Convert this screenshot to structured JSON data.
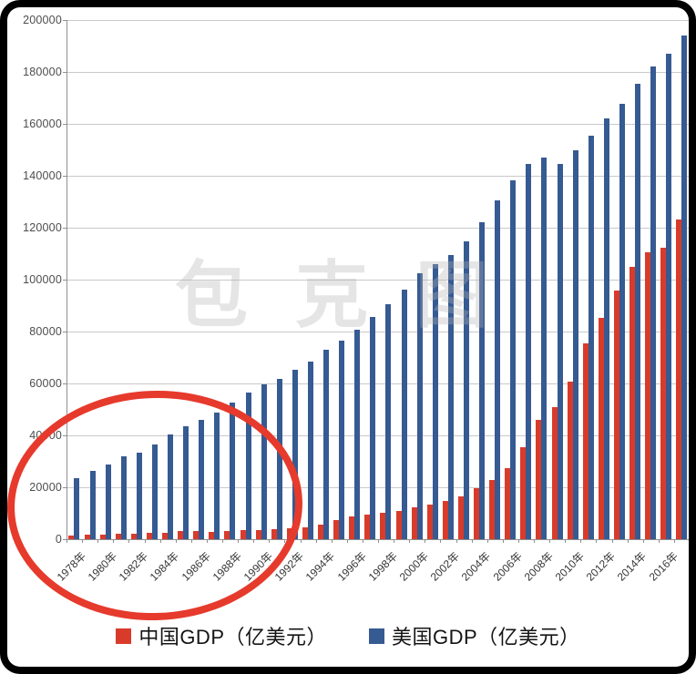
{
  "chart_data": {
    "type": "bar",
    "title": "",
    "xlabel": "",
    "ylabel": "",
    "x": [
      1978,
      1979,
      1980,
      1981,
      1982,
      1983,
      1984,
      1985,
      1986,
      1987,
      1988,
      1989,
      1990,
      1991,
      1992,
      1993,
      1994,
      1995,
      1996,
      1997,
      1998,
      1999,
      2000,
      2001,
      2002,
      2003,
      2004,
      2005,
      2006,
      2007,
      2008,
      2009,
      2010,
      2011,
      2012,
      2013,
      2014,
      2015,
      2016,
      2017
    ],
    "x_tick_labels": [
      "1978年",
      "1980年",
      "1982年",
      "1984年",
      "1986年",
      "1988年",
      "1990年",
      "1992年",
      "1994年",
      "1996年",
      "1998年",
      "2000年",
      "2002年",
      "2004年",
      "2006年",
      "2008年",
      "2010年",
      "2012年",
      "2014年",
      "2016年"
    ],
    "series": [
      {
        "name": "中国GDP（亿美元）",
        "color": "#d93b2b",
        "values": [
          1495,
          1782,
          1911,
          1959,
          2054,
          2306,
          2598,
          3095,
          3005,
          2729,
          3124,
          3478,
          3609,
          3834,
          4269,
          4447,
          5643,
          7345,
          8637,
          9616,
          10292,
          10939,
          12113,
          13393,
          14705,
          16602,
          19553,
          22860,
          27521,
          35504,
          45941,
          51015,
          60871,
          75515,
          85322,
          95704,
          104756,
          110616,
          112333,
          123104
        ]
      },
      {
        "name": "美国GDP（亿美元）",
        "color": "#365a92",
        "values": [
          23570,
          26327,
          28625,
          32109,
          33452,
          36383,
          40403,
          43466,
          45905,
          48700,
          52525,
          56571,
          59630,
          61740,
          65201,
          68591,
          72872,
          76397,
          80732,
          85774,
          90629,
          96309,
          102525,
          105819,
          109364,
          114581,
          122141,
          130366,
          138148,
          144520,
          147135,
          144491,
          149921,
          155426,
          161970,
          167848,
          175274,
          182252,
          187151,
          193906
        ]
      }
    ],
    "ylim": [
      0,
      200000
    ],
    "y_ticks": [
      0,
      20000,
      40000,
      60000,
      80000,
      100000,
      120000,
      140000,
      160000,
      180000,
      200000
    ],
    "grid": true,
    "legend_position": "bottom"
  },
  "watermark": {
    "text": "包克图"
  },
  "annotation": {
    "shape": "ellipse",
    "color": "#e63a2c",
    "highlights": "1978年-1992年"
  },
  "frame": {
    "background": "#000000",
    "inner_background": "#ffffff"
  }
}
